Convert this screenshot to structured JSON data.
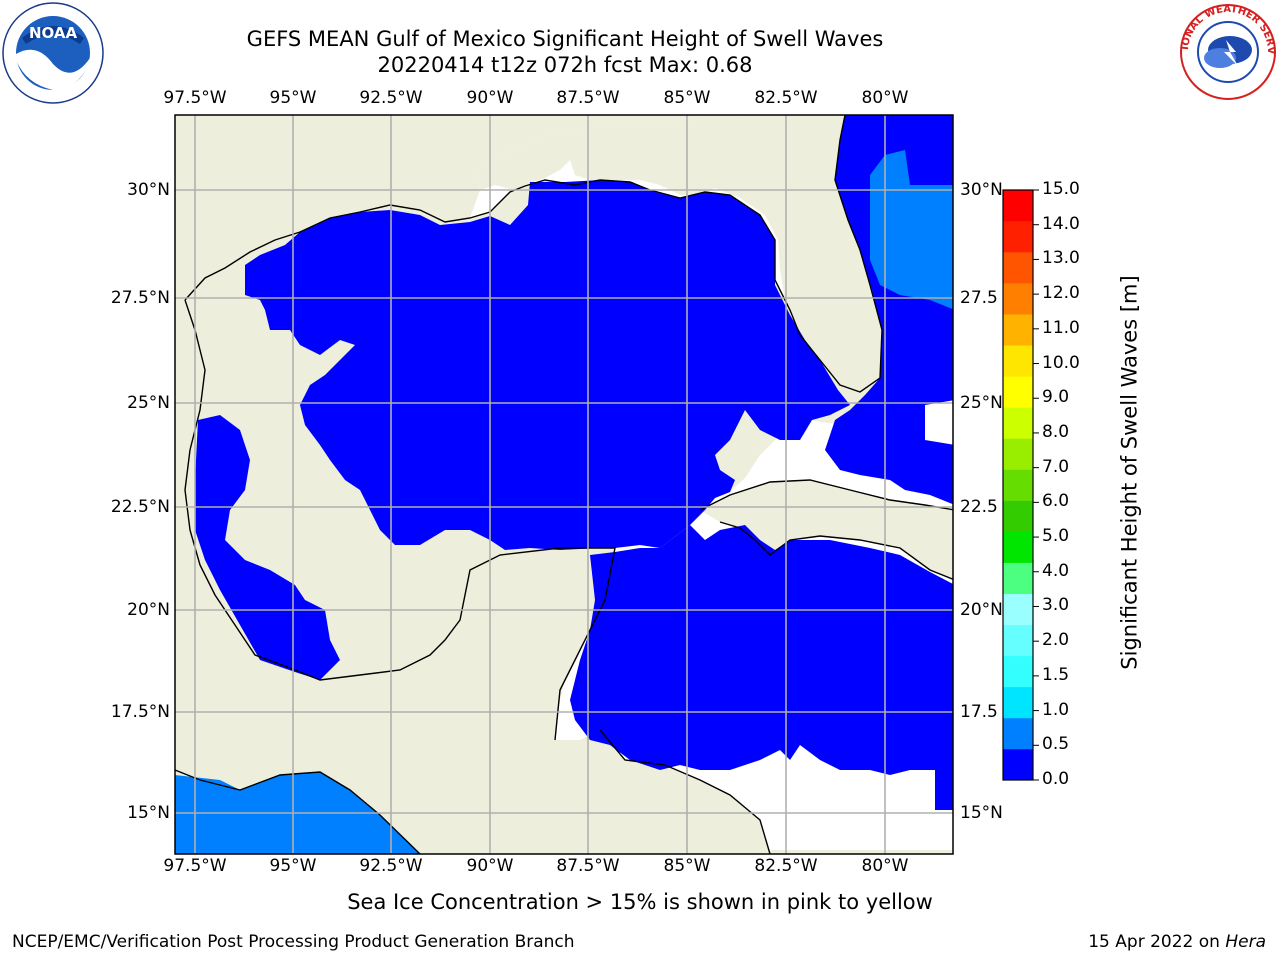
{
  "title": {
    "line1": "GEFS MEAN Gulf of Mexico Significant Height of Swell Waves",
    "line2": "20220414 t12z 072h fcst   Max: 0.68"
  },
  "map": {
    "lon_labels": [
      "97.5°W",
      "95°W",
      "92.5°W",
      "90°W",
      "87.5°W",
      "85°W",
      "82.5°W",
      "80°W"
    ],
    "lat_labels_left": [
      "30°N",
      "27.5°N",
      "25°N",
      "22.5°N",
      "20°N",
      "17.5°N",
      "15°N"
    ],
    "lat_labels_right": [
      "30°N",
      "27.5",
      "25°N",
      "22.5",
      "20°N",
      "17.5",
      "15°N"
    ],
    "extent": {
      "lon": [
        -98,
        -78
      ],
      "lat": [
        14,
        32
      ]
    },
    "colors": {
      "land": "#eeeedc",
      "ocean_swell_low": "#0000ff",
      "ocean_swell_mid": "#0080ff",
      "no_data": "#ffffff",
      "grid": "#b0b0b0"
    }
  },
  "colorbar": {
    "title": "Significant Height of Swell Waves [m]",
    "levels": [
      "0.0",
      "0.5",
      "1.0",
      "1.5",
      "2.0",
      "3.0",
      "4.0",
      "5.0",
      "6.0",
      "7.0",
      "8.0",
      "9.0",
      "10.0",
      "11.0",
      "12.0",
      "13.0",
      "14.0",
      "15.0"
    ],
    "colors": [
      "#0000ff",
      "#0080ff",
      "#00e5ff",
      "#33ffff",
      "#66ffff",
      "#99ffff",
      "#4dff80",
      "#00e600",
      "#33cc00",
      "#66dd00",
      "#99ee00",
      "#ccff00",
      "#ffff00",
      "#ffe600",
      "#ffb300",
      "#ff8000",
      "#ff5500",
      "#ff2000",
      "#ff0000"
    ]
  },
  "note": "Sea Ice Concentration > 15% is shown in pink to yellow",
  "footer": {
    "left": "NCEP/EMC/Verification Post Processing Product Generation Branch",
    "right_prefix": "15 Apr 2022 on ",
    "right_host": "Hera"
  },
  "logos": {
    "noaa": "NOAA",
    "nws": "NATIONAL WEATHER SERVICE"
  }
}
